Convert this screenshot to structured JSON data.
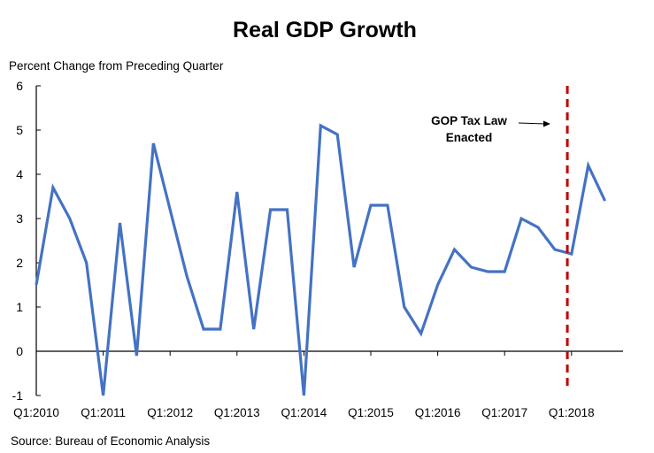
{
  "chart_data": {
    "type": "line",
    "title": "Real GDP Growth",
    "ylabel": "Percent Change from Preceding Quarter",
    "xlabel": "",
    "ylim": [
      -1,
      6
    ],
    "yticks": [
      6,
      5,
      4,
      3,
      2,
      1,
      0,
      -1
    ],
    "grid": false,
    "x": [
      "Q1:2010",
      "Q2:2010",
      "Q3:2010",
      "Q4:2010",
      "Q1:2011",
      "Q2:2011",
      "Q3:2011",
      "Q4:2011",
      "Q1:2012",
      "Q2:2012",
      "Q3:2012",
      "Q4:2012",
      "Q1:2013",
      "Q2:2013",
      "Q3:2013",
      "Q4:2013",
      "Q1:2014",
      "Q2:2014",
      "Q3:2014",
      "Q4:2014",
      "Q1:2015",
      "Q2:2015",
      "Q3:2015",
      "Q4:2015",
      "Q1:2016",
      "Q2:2016",
      "Q3:2016",
      "Q4:2016",
      "Q1:2017",
      "Q2:2017",
      "Q3:2017",
      "Q4:2017",
      "Q1:2018",
      "Q2:2018",
      "Q3:2018"
    ],
    "xtick_labels": [
      "Q1:2010",
      "Q1:2011",
      "Q1:2012",
      "Q1:2013",
      "Q1:2014",
      "Q1:2015",
      "Q1:2016",
      "Q1:2017",
      "Q1:2018"
    ],
    "series": [
      {
        "name": "Real GDP Growth",
        "color": "#4472C4",
        "values": [
          1.5,
          3.7,
          3.0,
          2.0,
          -1.0,
          2.9,
          -0.1,
          4.7,
          3.2,
          1.7,
          0.5,
          0.5,
          3.6,
          0.5,
          3.2,
          3.2,
          -1.0,
          5.1,
          4.9,
          1.9,
          3.3,
          3.3,
          1.0,
          0.4,
          1.5,
          2.3,
          1.9,
          1.8,
          1.8,
          3.0,
          2.8,
          2.3,
          2.2,
          4.2,
          3.4
        ]
      }
    ],
    "reference_line": {
      "type": "vertical-dashed",
      "x_position_quarter_index": 31.75,
      "color": "#C00000",
      "label_line1": "GOP Tax Law",
      "label_line2": "Enacted"
    },
    "source": "Source:  Bureau of Economic Analysis"
  }
}
